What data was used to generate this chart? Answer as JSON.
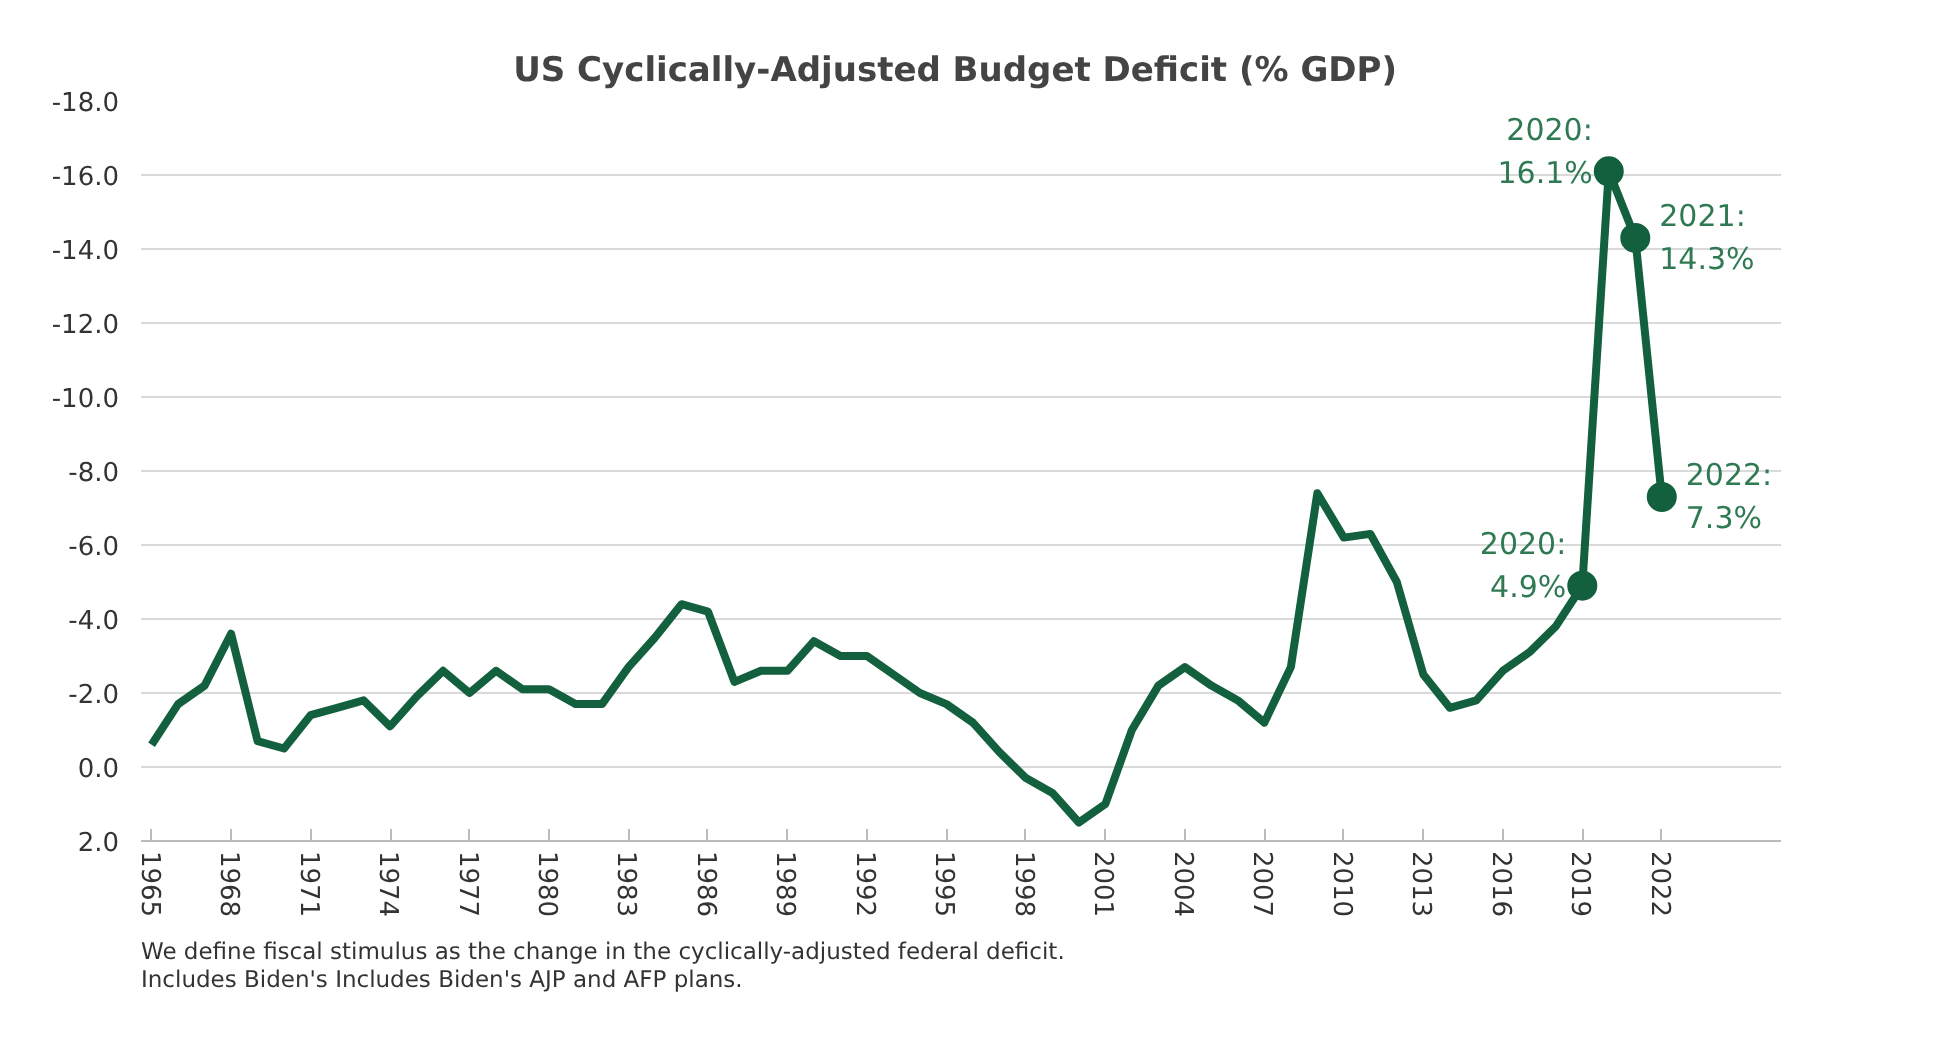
{
  "chart_data": {
    "type": "line",
    "title": "US Cyclically-Adjusted  Budget Deficit (% GDP)",
    "series": [
      {
        "color": "#13603f",
        "marker": "none",
        "x": [
          1965,
          1966,
          1967,
          1968,
          1969,
          1970,
          1971,
          1972,
          1973,
          1974,
          1975,
          1976,
          1977,
          1978,
          1979,
          1980,
          1981,
          1982,
          1983,
          1984,
          1985,
          1986,
          1987,
          1988,
          1989,
          1990,
          1991,
          1992,
          1993,
          1994,
          1995,
          1996,
          1997,
          1998,
          1999,
          2000,
          2001,
          2002,
          2003,
          2004,
          2005,
          2006,
          2007,
          2008,
          2009,
          2010,
          2011,
          2012,
          2013,
          2014,
          2015,
          2016,
          2017,
          2018,
          2019
        ],
        "values": [
          -0.6,
          -1.7,
          -2.2,
          -3.6,
          -0.7,
          -0.5,
          -1.4,
          -1.6,
          -1.8,
          -1.1,
          -1.9,
          -2.6,
          -2.0,
          -2.6,
          -2.1,
          -2.1,
          -1.7,
          -1.7,
          -2.7,
          -3.5,
          -4.4,
          -4.2,
          -2.3,
          -2.6,
          -2.6,
          -3.4,
          -3.0,
          -3.0,
          -2.5,
          -2.0,
          -1.7,
          -1.2,
          -0.4,
          0.3,
          0.7,
          1.5,
          1.0,
          -1.0,
          -2.2,
          -2.7,
          -2.2,
          -1.8,
          -1.2,
          -2.7,
          -7.4,
          -6.2,
          -6.3,
          -5.0,
          -2.5,
          -1.6,
          -1.8,
          -2.6,
          -3.1,
          -3.8,
          -4.9
        ]
      },
      {
        "color": "#13603f",
        "marker": "circle",
        "x": [
          2019,
          2020,
          2021,
          2022
        ],
        "values": [
          -4.9,
          -16.1,
          -14.3,
          -7.3
        ]
      }
    ],
    "xlim": [
      1964.6,
      2026.5
    ],
    "xticks": [
      1965,
      1968,
      1971,
      1974,
      1977,
      1980,
      1983,
      1986,
      1989,
      1992,
      1995,
      1998,
      2001,
      2004,
      2007,
      2010,
      2013,
      2016,
      2019,
      2022
    ],
    "ylim": [
      2,
      -18
    ],
    "yticks": [
      {
        "value": -18,
        "label": "-18.0"
      },
      {
        "value": -16,
        "label": "-16.0"
      },
      {
        "value": -14,
        "label": "-14.0"
      },
      {
        "value": -12,
        "label": "-12.0"
      },
      {
        "value": -10,
        "label": "-10.0"
      },
      {
        "value": -8,
        "label": "-8.0"
      },
      {
        "value": -6,
        "label": "-6.0"
      },
      {
        "value": -4,
        "label": "-4.0"
      },
      {
        "value": -2,
        "label": "-2.0"
      },
      {
        "value": 0,
        "label": "0.0"
      },
      {
        "value": 2,
        "label": "2.0"
      }
    ],
    "grid": "y",
    "annotations": [
      {
        "text": "2020:\n4.9%",
        "x": 2019,
        "y": -4.9
      },
      {
        "text": "2020:\n16.1%",
        "x": 2020,
        "y": -16.1
      },
      {
        "text": "2021:\n14.3%",
        "x": 2021,
        "y": -14.3
      },
      {
        "text": "2022:\n7.3%",
        "x": 2022,
        "y": -7.3
      },
      "We define fiscal stimulus as the change in the cyclically-adjusted federal deficit.\nIncludes Biden's Includes Biden's AJP and AFP plans."
    ]
  }
}
